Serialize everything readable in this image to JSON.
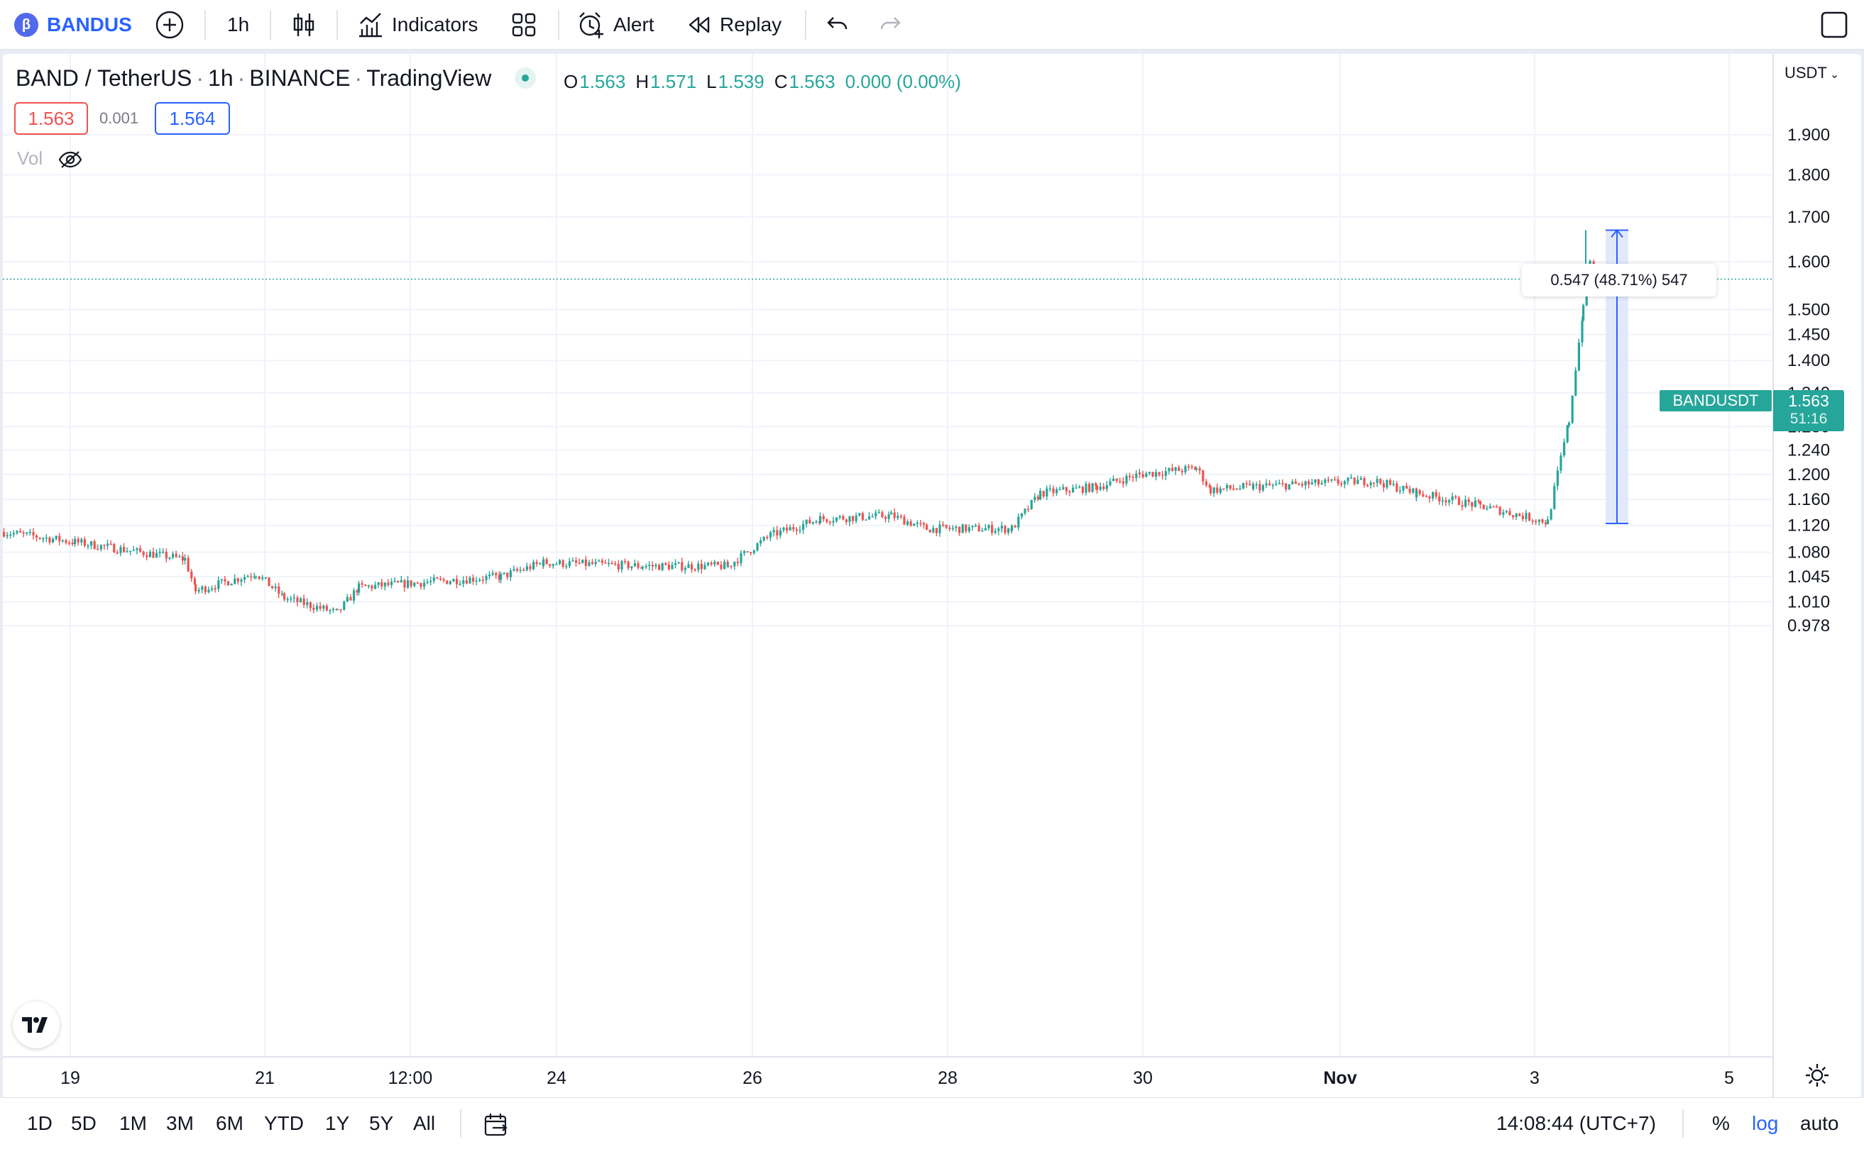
{
  "toolbar": {
    "symbol": "BANDUS",
    "interval": "1h",
    "indicators_label": "Indicators",
    "alert_label": "Alert",
    "replay_label": "Replay"
  },
  "legend": {
    "pair": "BAND / TetherUS",
    "interval": "1h",
    "exchange": "BINANCE",
    "source": "TradingView",
    "ohlc": {
      "o_key": "O",
      "o": "1.563",
      "h_key": "H",
      "h": "1.571",
      "l_key": "L",
      "l": "1.539",
      "c_key": "C",
      "c": "1.563",
      "change": "0.000 (0.00%)"
    },
    "bid": "1.563",
    "spread": "0.001",
    "ask": "1.564",
    "vol_label": "Vol"
  },
  "price_axis": {
    "currency": "USDT",
    "ticks": [
      "1.900",
      "1.800",
      "1.700",
      "1.600",
      "1.500",
      "1.450",
      "1.400",
      "1.340",
      "1.280",
      "1.240",
      "1.200",
      "1.160",
      "1.120",
      "1.080",
      "1.045",
      "1.010",
      "0.978"
    ],
    "last_symbol": "BANDUSDT",
    "last_price": "1.563",
    "countdown": "51:16"
  },
  "time_axis": {
    "ticks": [
      "19",
      "21",
      "12:00",
      "24",
      "26",
      "28",
      "30",
      "Nov",
      "3",
      "5"
    ]
  },
  "measure": {
    "label": "0.547 (48.71%) 547"
  },
  "bottom": {
    "ranges": [
      "1D",
      "5D",
      "1M",
      "3M",
      "6M",
      "YTD",
      "1Y",
      "5Y",
      "All"
    ],
    "clock": "14:08:44 (UTC+7)",
    "percent": "%",
    "log": "log",
    "auto": "auto"
  },
  "colors": {
    "up": "#26a69a",
    "down": "#ef5350",
    "accent": "#2962ff",
    "measure_fill": "#dce3fb",
    "measure_line": "#2962ff"
  },
  "chart_data": {
    "type": "candlestick",
    "scale": "log",
    "x_range": [
      "18",
      "5 Nov"
    ],
    "ylim": [
      0.978,
      1.9
    ],
    "key_points": [
      {
        "x": "18",
        "y": 1.11
      },
      {
        "x": "19",
        "y": 1.095
      },
      {
        "x": "20",
        "y": 1.07
      },
      {
        "x": "20",
        "y": 1.025
      },
      {
        "x": "21",
        "y": 1.05
      },
      {
        "x": "21",
        "y": 1.015
      },
      {
        "x": "12:00",
        "y": 0.995
      },
      {
        "x": "12:00",
        "y": 1.03
      },
      {
        "x": "24",
        "y": 1.045
      },
      {
        "x": "24",
        "y": 1.065
      },
      {
        "x": "25",
        "y": 1.06
      },
      {
        "x": "26",
        "y": 1.06
      },
      {
        "x": "26",
        "y": 1.105
      },
      {
        "x": "27",
        "y": 1.13
      },
      {
        "x": "28",
        "y": 1.135
      },
      {
        "x": "28",
        "y": 1.115
      },
      {
        "x": "29",
        "y": 1.115
      },
      {
        "x": "29",
        "y": 1.17
      },
      {
        "x": "30",
        "y": 1.18
      },
      {
        "x": "30",
        "y": 1.2
      },
      {
        "x": "31",
        "y": 1.21
      },
      {
        "x": "31",
        "y": 1.175
      },
      {
        "x": "Nov",
        "y": 1.18
      },
      {
        "x": "Nov",
        "y": 1.19
      },
      {
        "x": "2",
        "y": 1.17
      },
      {
        "x": "3",
        "y": 1.15
      },
      {
        "x": "3",
        "y": 1.125
      },
      {
        "x": "3",
        "y": 1.29
      },
      {
        "x": "3",
        "y": 1.5
      },
      {
        "x": "3",
        "y": 1.605
      },
      {
        "x": "3",
        "y": 1.563
      }
    ],
    "measure": {
      "from": 1.123,
      "to": 1.67
    }
  }
}
